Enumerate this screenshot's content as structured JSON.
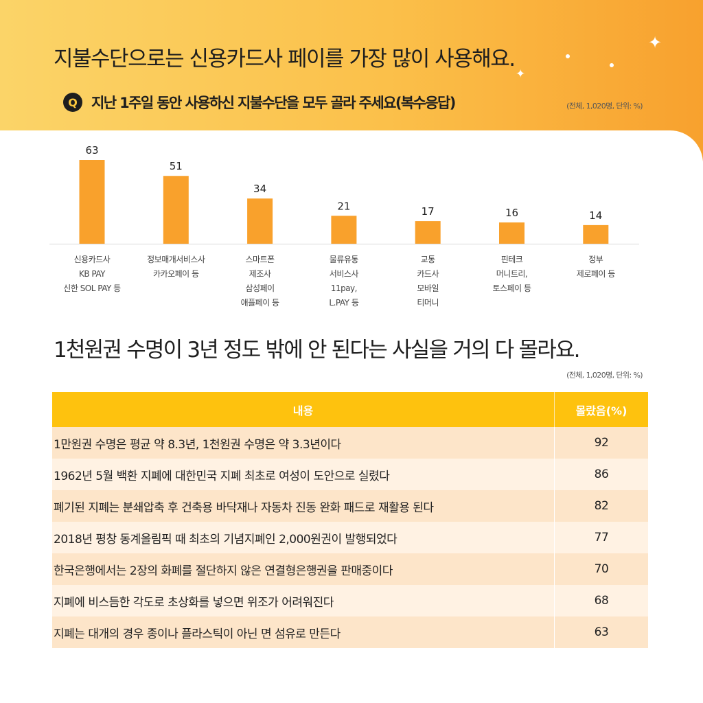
{
  "section1": {
    "title": "지불수단으로는  신용카드사 페이를 가장 많이 사용해요.",
    "question_badge": "Q",
    "question": "지난 1주일 동안 사용하신 지불수단을 모두 골라 주세요(복수응답)",
    "note": "(전체, 1,020명, 단위: %)"
  },
  "chart_data": {
    "type": "bar",
    "categories": [
      [
        "신용카드사",
        "KB PAY",
        "신한 SOL PAY 등"
      ],
      [
        "정보매개서비스사",
        "카카오페이 등"
      ],
      [
        "스마트폰",
        "제조사",
        "삼성페이",
        "애플페이 등"
      ],
      [
        "물류유통",
        "서비스사",
        "11pay,",
        "L.PAY 등"
      ],
      [
        "교통",
        "카드사",
        "모바일",
        "티머니"
      ],
      [
        "핀테크",
        "머니트리,",
        "토스페이 등"
      ],
      [
        "정부",
        "제로페이 등"
      ]
    ],
    "values": [
      63,
      51,
      34,
      21,
      17,
      16,
      14
    ],
    "value_labels": [
      "63",
      "51",
      "34",
      "21",
      "17",
      "16",
      "14"
    ],
    "ylim": [
      0,
      63
    ],
    "grid": false,
    "bar_color": "#f9a12c",
    "axis_color": "#d9d9d9"
  },
  "section2": {
    "title": "1천원권 수명이 3년 정도 밖에 안 된다는 사실을 거의 다 몰라요.",
    "note": "(전체, 1,020명, 단위: %)",
    "table": {
      "headers": [
        "내용",
        "몰랐음(%)"
      ],
      "rows": [
        {
          "text": "1만원권 수명은 평균 약 8.3년, 1천원권 수명은 약 3.3년이다",
          "value": "92"
        },
        {
          "text": "1962년 5월 백환 지폐에 대한민국 지폐 최초로 여성이 도안으로 실렸다",
          "value": "86"
        },
        {
          "text": "폐기된 지폐는 분쇄압축 후 건축용 바닥재나 자동차 진동 완화 패드로 재활용 된다",
          "value": "82"
        },
        {
          "text": "2018년 평창 동계올림픽 때 최초의 기념지폐인 2,000원권이 발행되었다",
          "value": "77"
        },
        {
          "text": "한국은행에서는 2장의 화폐를 절단하지 않은 연결형은행권을 판매중이다",
          "value": "70"
        },
        {
          "text": "지폐에 비스듬한 각도로 초상화를 넣으면 위조가 어려워진다",
          "value": "68"
        },
        {
          "text": "지폐는 대개의 경우 종이나 플라스틱이 아닌 면 섬유로 만든다",
          "value": "63"
        }
      ]
    }
  },
  "colors": {
    "header_gradient_start": "#fbd468",
    "header_gradient_end": "#f8a12e",
    "table_header": "#fec20e",
    "row_odd": "#fde5c9",
    "row_even": "#fff2e3"
  }
}
